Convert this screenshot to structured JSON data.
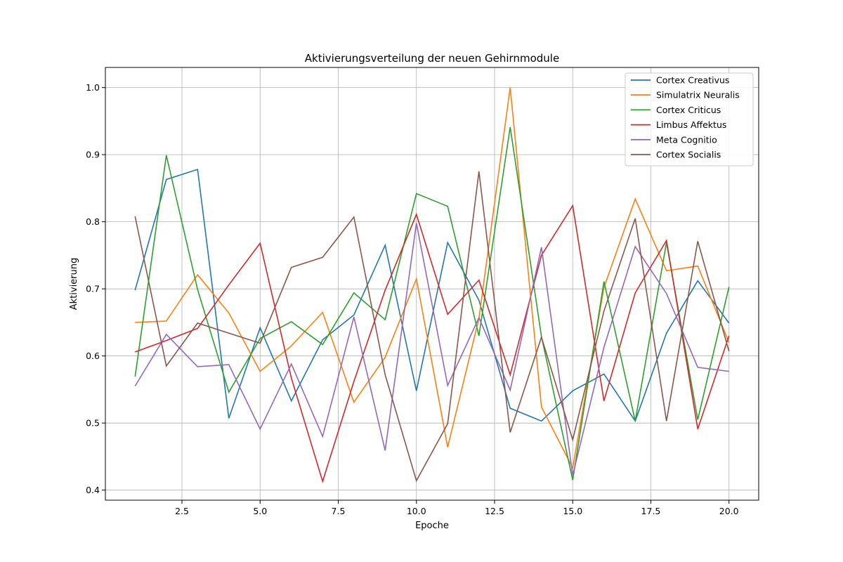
{
  "chart_data": {
    "type": "line",
    "title": "Aktivierungsverteilung der neuen Gehirnmodule",
    "xlabel": "Epoche",
    "ylabel": "Aktivierung",
    "x": [
      1,
      2,
      3,
      4,
      5,
      6,
      7,
      8,
      9,
      10,
      11,
      12,
      13,
      14,
      15,
      16,
      17,
      18,
      19,
      20
    ],
    "xlim": [
      0.05,
      20.95
    ],
    "ylim": [
      0.385,
      1.03
    ],
    "xticks": [
      2.5,
      5.0,
      7.5,
      10.0,
      12.5,
      15.0,
      17.5,
      20.0
    ],
    "xtick_labels": [
      "2.5",
      "5.0",
      "7.5",
      "10.0",
      "12.5",
      "15.0",
      "17.5",
      "20.0"
    ],
    "yticks": [
      0.4,
      0.5,
      0.6,
      0.7,
      0.8,
      0.9,
      1.0
    ],
    "ytick_labels": [
      "0.4",
      "0.5",
      "0.6",
      "0.7",
      "0.8",
      "0.9",
      "1.0"
    ],
    "grid": true,
    "legend_position": "top-right",
    "series": [
      {
        "name": "Cortex Creativus",
        "color": "#1f77b4",
        "values": [
          0.698,
          0.863,
          0.878,
          0.507,
          0.642,
          0.533,
          0.624,
          0.661,
          0.765,
          0.548,
          0.769,
          0.683,
          0.522,
          0.503,
          0.548,
          0.573,
          0.503,
          0.634,
          0.712,
          0.649
        ]
      },
      {
        "name": "Simulatrix Neuralis",
        "color": "#ff7f0e",
        "values": [
          0.65,
          0.652,
          0.721,
          0.664,
          0.577,
          0.615,
          0.665,
          0.531,
          0.598,
          0.715,
          0.464,
          0.656,
          1.0,
          0.524,
          0.433,
          0.702,
          0.834,
          0.727,
          0.734,
          0.62
        ]
      },
      {
        "name": "Cortex Criticus",
        "color": "#2ca02c",
        "values": [
          0.569,
          0.899,
          0.699,
          0.546,
          0.626,
          0.651,
          0.617,
          0.694,
          0.654,
          0.842,
          0.823,
          0.63,
          0.941,
          0.629,
          0.415,
          0.711,
          0.503,
          0.769,
          0.505,
          0.703
        ]
      },
      {
        "name": "Limbus Affektus",
        "color": "#d62728",
        "values": [
          0.606,
          0.623,
          0.641,
          0.706,
          0.768,
          0.567,
          0.413,
          0.562,
          0.698,
          0.811,
          0.662,
          0.713,
          0.572,
          0.75,
          0.824,
          0.533,
          0.694,
          0.772,
          0.491,
          0.63
        ]
      },
      {
        "name": "Meta Cognitio",
        "color": "#9467bd",
        "values": [
          0.555,
          0.632,
          0.584,
          0.587,
          0.491,
          0.588,
          0.48,
          0.658,
          0.459,
          0.798,
          0.556,
          0.657,
          0.549,
          0.762,
          0.422,
          0.613,
          0.763,
          0.693,
          0.583,
          0.577
        ]
      },
      {
        "name": "Cortex Socialis",
        "color": "#8c564b",
        "values": [
          0.808,
          0.585,
          0.649,
          0.634,
          0.619,
          0.732,
          0.747,
          0.807,
          0.572,
          0.414,
          0.499,
          0.875,
          0.486,
          0.628,
          0.475,
          0.667,
          0.805,
          0.503,
          0.771,
          0.607
        ]
      }
    ]
  }
}
